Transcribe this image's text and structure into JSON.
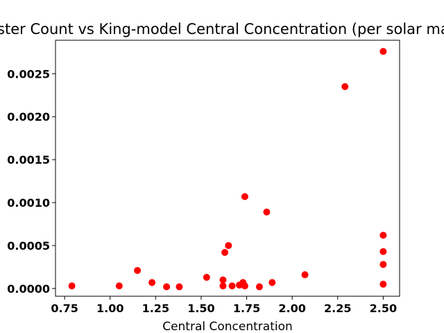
{
  "chart_data": {
    "type": "scatter",
    "title": "Cluster Count vs King-model Central Concentration (per solar mass)",
    "xlabel": "Central Concentration",
    "ylabel": "",
    "xlim": [
      0.7,
      2.59
    ],
    "ylim": [
      -9e-05,
      0.00289
    ],
    "x_ticks": [
      0.75,
      1.0,
      1.25,
      1.5,
      1.75,
      2.0,
      2.25,
      2.5
    ],
    "x_tick_labels": [
      "0.75",
      "1.00",
      "1.25",
      "1.50",
      "1.75",
      "2.00",
      "2.25",
      "2.50"
    ],
    "y_ticks": [
      0.0,
      0.0005,
      0.001,
      0.0015,
      0.002,
      0.0025
    ],
    "y_tick_labels": [
      "0.0000",
      "0.0005",
      "0.0010",
      "0.0015",
      "0.0020",
      "0.0025"
    ],
    "grid": false,
    "marker_color": "#ff0000",
    "series": [
      {
        "points": [
          [
            0.79,
            3e-05
          ],
          [
            1.05,
            3e-05
          ],
          [
            1.15,
            0.00021
          ],
          [
            1.23,
            7e-05
          ],
          [
            1.31,
            2e-05
          ],
          [
            1.38,
            2e-05
          ],
          [
            1.53,
            0.00013
          ],
          [
            1.62,
            0.0001
          ],
          [
            1.62,
            3e-05
          ],
          [
            1.63,
            0.00042
          ],
          [
            1.65,
            0.0005
          ],
          [
            1.67,
            3e-05
          ],
          [
            1.71,
            4e-05
          ],
          [
            1.73,
            7e-05
          ],
          [
            1.74,
            3e-05
          ],
          [
            1.74,
            0.00107
          ],
          [
            1.82,
            2e-05
          ],
          [
            1.86,
            0.00089
          ],
          [
            1.89,
            7e-05
          ],
          [
            2.07,
            0.00016
          ],
          [
            2.29,
            0.00235
          ],
          [
            2.5,
            0.00276
          ],
          [
            2.5,
            0.00062
          ],
          [
            2.5,
            0.00043
          ],
          [
            2.5,
            0.00028
          ],
          [
            2.5,
            5e-05
          ]
        ]
      }
    ]
  }
}
